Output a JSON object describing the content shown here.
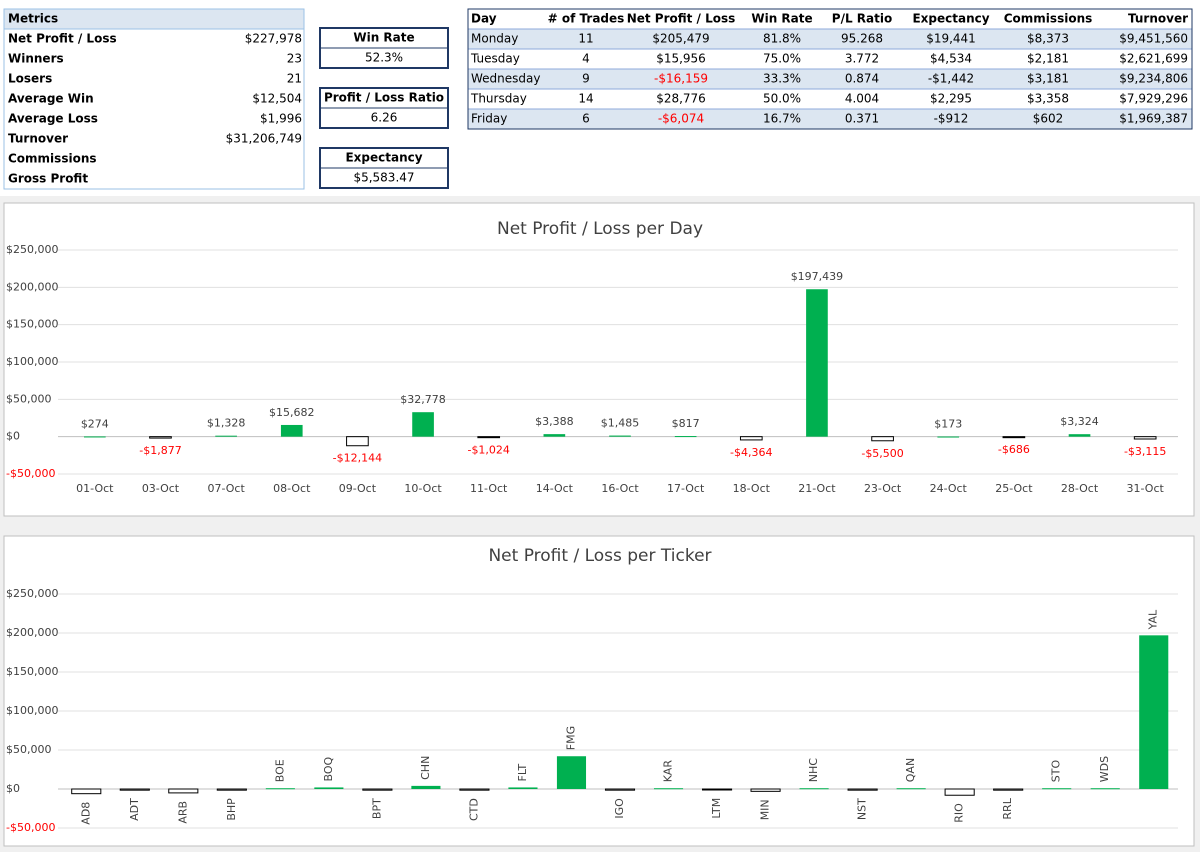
{
  "metrics": {
    "title": "Metrics",
    "rows": [
      [
        "Net Profit / Loss",
        "$227,978"
      ],
      [
        "Winners",
        "23"
      ],
      [
        "Losers",
        "21"
      ],
      [
        "Average Win",
        "$12,504"
      ],
      [
        "Average Loss",
        "$1,996"
      ],
      [
        "Turnover",
        "$31,206,749"
      ],
      [
        "Commissions"
      ],
      [
        "Gross Profit"
      ]
    ]
  },
  "kpis": [
    {
      "label": "Win Rate",
      "value": "52.3%"
    },
    {
      "label": "Profit / Loss Ratio",
      "value": "6.26"
    },
    {
      "label": "Expectancy",
      "value": "$5,583.47"
    }
  ],
  "day_table": {
    "columns": [
      "Day",
      "# of Trades",
      "Net Profit / Loss",
      "Win Rate",
      "P/L Ratio",
      "Expectancy",
      "Commissions",
      "Turnover"
    ],
    "rows": [
      [
        "Monday",
        "11",
        "$205,479",
        "81.8%",
        "95.268",
        "$19,441",
        "$8,373",
        "$9,451,560"
      ],
      [
        "Tuesday",
        "4",
        "$15,956",
        "75.0%",
        "3.772",
        "$4,534",
        "$2,181",
        "$2,621,699"
      ],
      [
        "Wednesday",
        "9",
        "-$16,159",
        "33.3%",
        "0.874",
        "-$1,442",
        "$3,181",
        "$9,234,806"
      ],
      [
        "Thursday",
        "14",
        "$28,776",
        "50.0%",
        "4.004",
        "$2,295",
        "$3,358",
        "$7,929,296"
      ],
      [
        "Friday",
        "6",
        "-$6,074",
        "16.7%",
        "0.371",
        "-$912",
        "$602",
        "$1,969,387"
      ]
    ],
    "red_negative_columns": [
      2
    ]
  },
  "chart_data": [
    {
      "type": "bar",
      "title": "Net Profit / Loss per Day",
      "categories": [
        "01-Oct",
        "03-Oct",
        "07-Oct",
        "08-Oct",
        "09-Oct",
        "10-Oct",
        "11-Oct",
        "14-Oct",
        "16-Oct",
        "17-Oct",
        "18-Oct",
        "21-Oct",
        "23-Oct",
        "24-Oct",
        "25-Oct",
        "28-Oct",
        "31-Oct"
      ],
      "values": [
        274,
        -1877,
        1328,
        15682,
        -12144,
        32778,
        -1024,
        3388,
        1485,
        817,
        -4364,
        197439,
        -5500,
        173,
        -686,
        3324,
        -3115
      ],
      "value_labels": [
        "$274",
        "-$1,877",
        "$1,328",
        "$15,682",
        "-$12,144",
        "$32,778",
        "-$1,024",
        "$3,388",
        "$1,485",
        "$817",
        "-$4,364",
        "$197,439",
        "-$5,500",
        "$173",
        "-$686",
        "$3,324",
        "-$3,115"
      ],
      "color": "#00b050",
      "negative_color": "#ffffff",
      "negative_stroke": "#000000",
      "negative_label_color": "#ff0000",
      "ylim": [
        -50000,
        250000
      ],
      "yticks": [
        {
          "value": -50000,
          "label": "-$50,000"
        },
        {
          "value": 0,
          "label": "$0"
        },
        {
          "value": 50000,
          "label": "$50,000"
        },
        {
          "value": 100000,
          "label": "$100,000"
        },
        {
          "value": 150000,
          "label": "$150,000"
        },
        {
          "value": 200000,
          "label": "$200,000"
        },
        {
          "value": 250000,
          "label": "$250,000"
        }
      ],
      "grid": true
    },
    {
      "type": "bar",
      "title": "Net Profit / Loss per Ticker",
      "categories": [
        "AD8",
        "ADT",
        "ARB",
        "BHP",
        "BOE",
        "BOQ",
        "BPT",
        "CHN",
        "CTD",
        "FLT",
        "FMG",
        "IGO",
        "KAR",
        "LTM",
        "MIN",
        "NHC",
        "NST",
        "QAN",
        "RIO",
        "RRL",
        "STO",
        "WDS",
        "YAL"
      ],
      "values": [
        -6000,
        -1500,
        -5000,
        -1500,
        1000,
        2000,
        -1500,
        4000,
        -1500,
        2000,
        42000,
        -1500,
        1000,
        -1000,
        -3000,
        1000,
        -1500,
        1000,
        -8000,
        -1500,
        1000,
        1000,
        197000
      ],
      "color": "#00b050",
      "negative_color": "#ffffff",
      "negative_stroke": "#000000",
      "ylim": [
        -50000,
        250000
      ],
      "yticks": [
        {
          "value": -50000,
          "label": "-$50,000"
        },
        {
          "value": 0,
          "label": "$0"
        },
        {
          "value": 50000,
          "label": "$50,000"
        },
        {
          "value": 100000,
          "label": "$100,000"
        },
        {
          "value": 150000,
          "label": "$150,000"
        },
        {
          "value": 200000,
          "label": "$200,000"
        },
        {
          "value": 250000,
          "label": "$250,000"
        }
      ],
      "grid": true
    }
  ]
}
